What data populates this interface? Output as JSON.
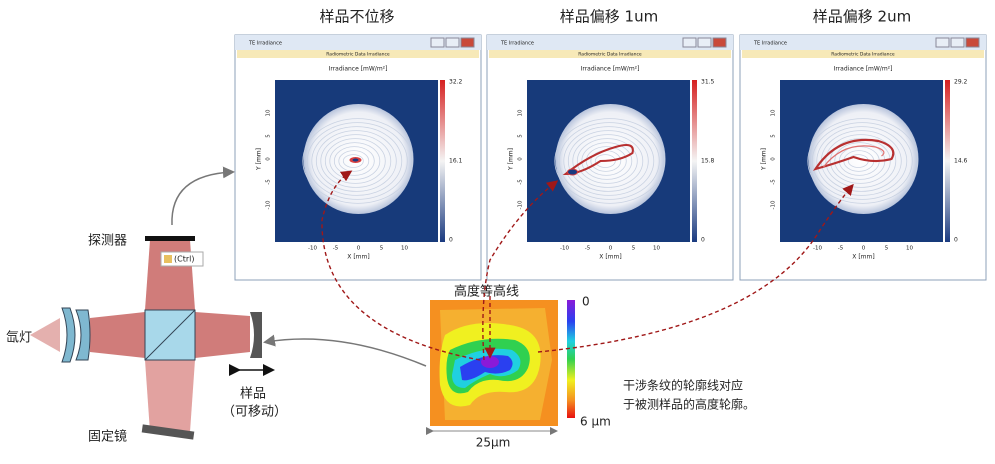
{
  "panels": [
    {
      "title": "样品不位移",
      "window_title": "TE Irradiance",
      "header": "Radiometric Data Irradiance",
      "plot_title": "Irradiance  [mW/m²]",
      "colorbar_ticks": [
        "32.2",
        "16.1",
        "0"
      ],
      "x_label": "X [mm]",
      "y_label": "Y [mm]",
      "x_ticks": [
        "-10",
        "-5",
        "0",
        "5",
        "10"
      ],
      "y_ticks": [
        "10",
        "5",
        "0",
        "-5",
        "-10"
      ]
    },
    {
      "title": "样品偏移 1um",
      "window_title": "TE Irradiance",
      "header": "Radiometric Data Irradiance",
      "plot_title": "Irradiance  [mW/m²]",
      "colorbar_ticks": [
        "31.5",
        "15.8",
        "0"
      ],
      "x_label": "X [mm]",
      "y_label": "Y [mm]",
      "x_ticks": [
        "-10",
        "-5",
        "0",
        "5",
        "10"
      ],
      "y_ticks": [
        "10",
        "5",
        "0",
        "-5",
        "-10"
      ]
    },
    {
      "title": "样品偏移 2um",
      "window_title": "TE Irradiance",
      "header": "Radiometric Data Irradiance",
      "plot_title": "Irradiance  [mW/m²]",
      "colorbar_ticks": [
        "29.2",
        "14.6",
        "0"
      ],
      "x_label": "X [mm]",
      "y_label": "Y [mm]",
      "x_ticks": [
        "-10",
        "-5",
        "0",
        "5",
        "10"
      ],
      "y_ticks": [
        "10",
        "5",
        "0",
        "-5",
        "-10"
      ]
    }
  ],
  "setup": {
    "detector": "探测器",
    "lamp": "氙灯",
    "fixed_mirror": "固定镜",
    "sample": "样品",
    "sample_note": "（可移动）",
    "paste_hint": "(Ctrl)"
  },
  "contour": {
    "title": "高度等高线",
    "scale_top": "0",
    "scale_bottom": "6 μm",
    "width_label": "25μm"
  },
  "caption": [
    "干涉条纹的轮廓线对应",
    "于被测样品的高度轮廓。"
  ]
}
